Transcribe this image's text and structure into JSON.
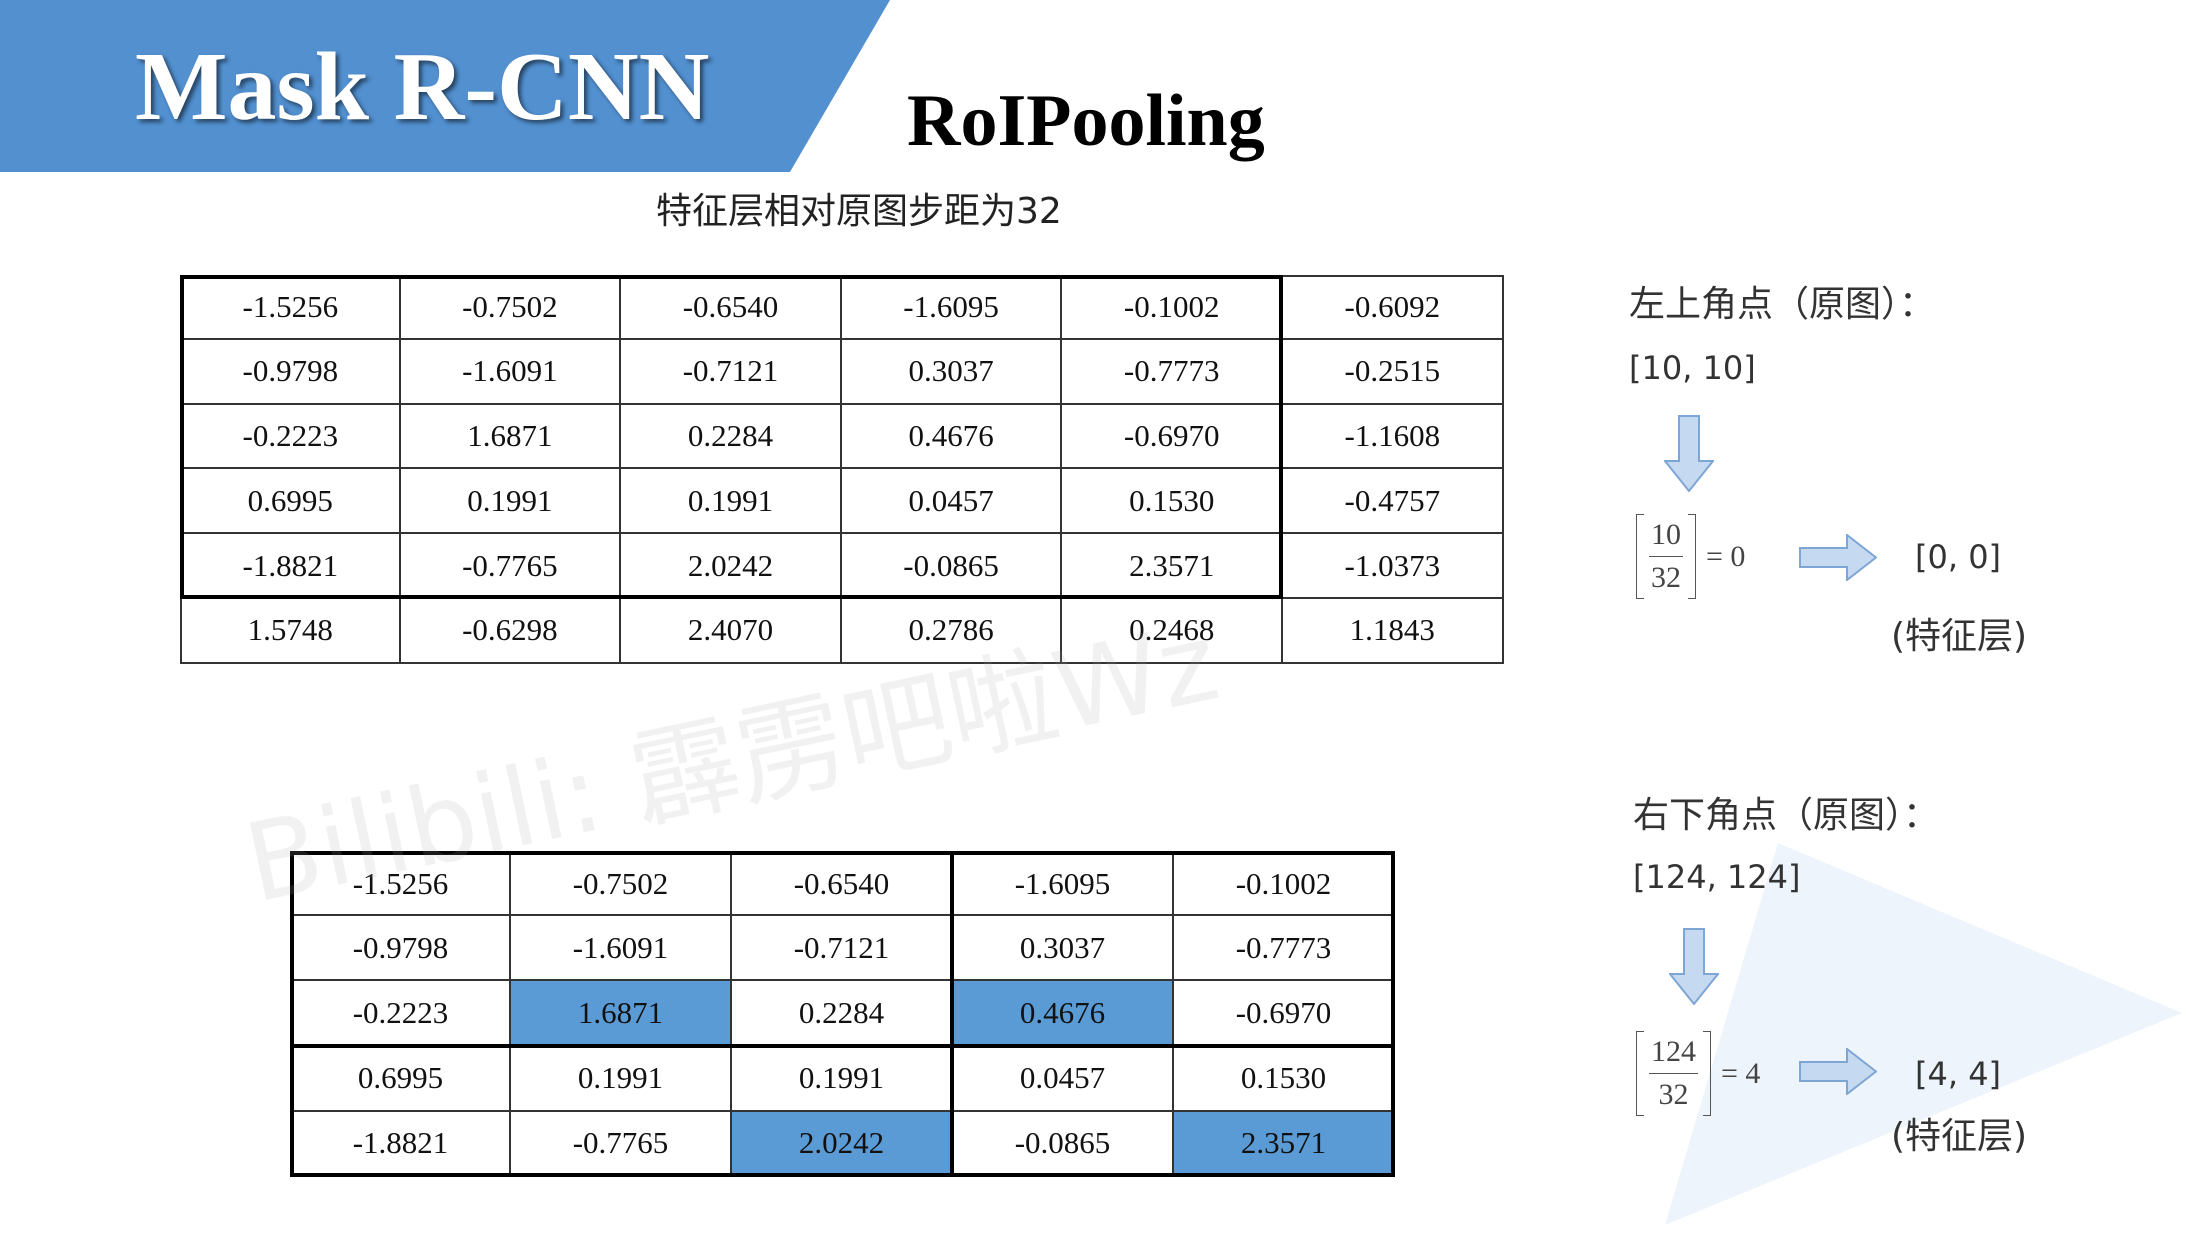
{
  "header": {
    "title": "Mask R-CNN",
    "subtitle": "RoIPooling"
  },
  "caption": "特征层相对原图步距为32",
  "watermark": "Bilibili: 霹雳吧啦Wz",
  "top_table": {
    "rows": [
      [
        "-1.5256",
        "-0.7502",
        "-0.6540",
        "-1.6095",
        "-0.1002",
        "-0.6092"
      ],
      [
        "-0.9798",
        "-1.6091",
        "-0.7121",
        "0.3037",
        "-0.7773",
        "-0.2515"
      ],
      [
        "-0.2223",
        "1.6871",
        "0.2284",
        "0.4676",
        "-0.6970",
        "-1.1608"
      ],
      [
        "0.6995",
        "0.1991",
        "0.1991",
        "0.0457",
        "0.1530",
        "-0.4757"
      ],
      [
        "-1.8821",
        "-0.7765",
        "2.0242",
        "-0.0865",
        "2.3571",
        "-1.0373"
      ],
      [
        "1.5748",
        "-0.6298",
        "2.4070",
        "0.2786",
        "0.2468",
        "1.1843"
      ]
    ]
  },
  "bottom_table": {
    "rows": [
      [
        "-1.5256",
        "-0.7502",
        "-0.6540",
        "-1.6095",
        "-0.1002"
      ],
      [
        "-0.9798",
        "-1.6091",
        "-0.7121",
        "0.3037",
        "-0.7773"
      ],
      [
        "-0.2223",
        "1.6871",
        "0.2284",
        "0.4676",
        "-0.6970"
      ],
      [
        "0.6995",
        "0.1991",
        "0.1991",
        "0.0457",
        "0.1530"
      ],
      [
        "-1.8821",
        "-0.7765",
        "2.0242",
        "-0.0865",
        "2.3571"
      ]
    ],
    "highlighted_cells": [
      [
        2,
        1
      ],
      [
        2,
        3
      ],
      [
        4,
        2
      ],
      [
        4,
        4
      ]
    ]
  },
  "top_left": {
    "label": "左上角点（原图）：",
    "coords": "[10, 10]",
    "numerator": "10",
    "denominator": "32",
    "result": "= 0",
    "feature_coords": "[0, 0]",
    "feature_label": "(特征层)"
  },
  "bottom_right": {
    "label": "右下角点（原图）：",
    "coords": "[124, 124]",
    "numerator": "124",
    "denominator": "32",
    "result": "= 4",
    "feature_coords": "[4, 4]",
    "feature_label": "(特征层)"
  },
  "icons": [
    "arrow-down-icon",
    "arrow-right-icon"
  ],
  "colors": {
    "banner": "#5290d0",
    "highlight": "#5b9bd5",
    "arrow_fill": "#c5d9f1",
    "arrow_stroke": "#7ea6d5",
    "decoration": "#eef4fb"
  }
}
